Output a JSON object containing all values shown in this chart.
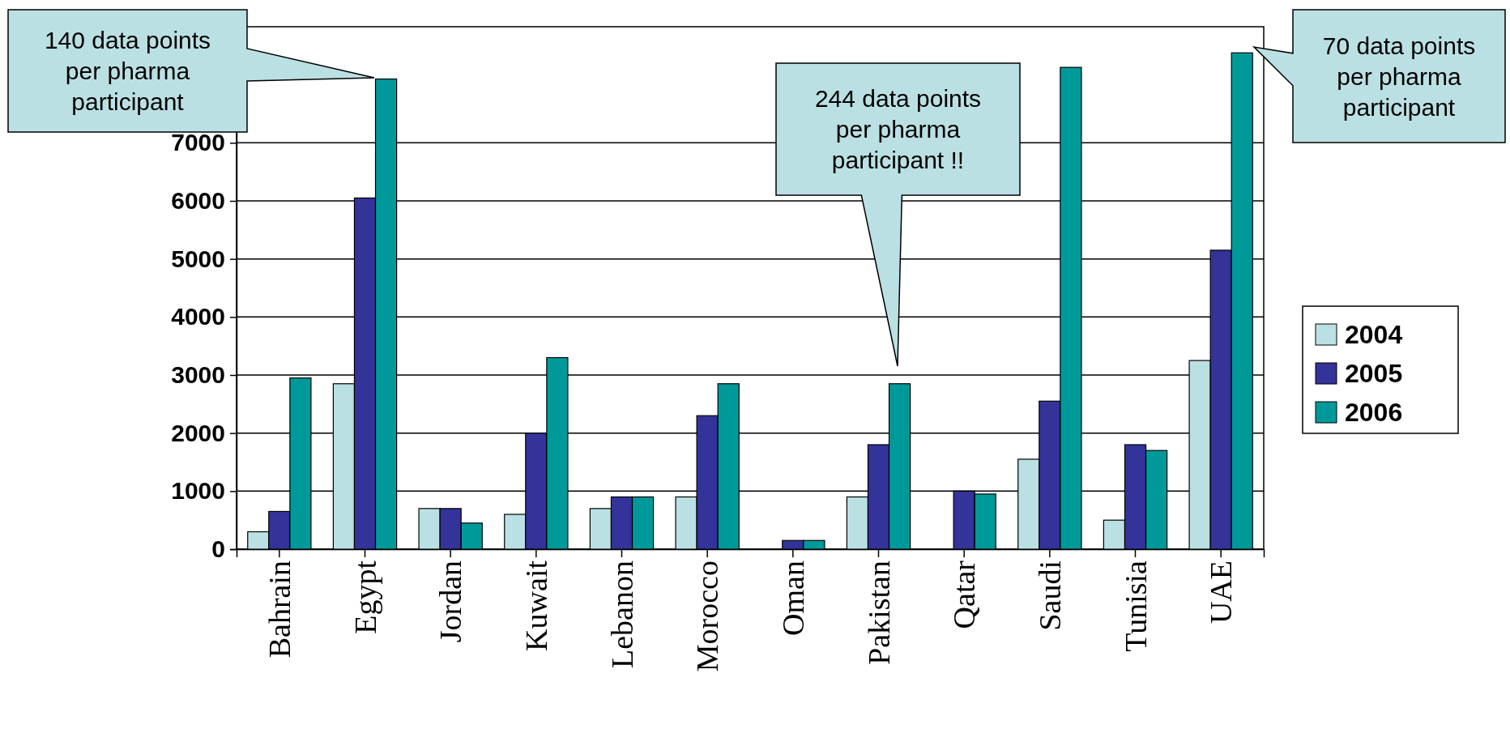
{
  "chart_data": {
    "type": "bar",
    "categories": [
      "Bahrain",
      "Egypt",
      "Jordan",
      "Kuwait",
      "Lebanon",
      "Morocco",
      "Oman",
      "Pakistan",
      "Qatar",
      "Saudi",
      "Tunisia",
      "UAE"
    ],
    "series": [
      {
        "name": "2004",
        "color": "#bbe0e3",
        "values": [
          300,
          2850,
          700,
          600,
          700,
          900,
          null,
          900,
          null,
          1550,
          500,
          3250
        ]
      },
      {
        "name": "2005",
        "color": "#333399",
        "values": [
          650,
          6050,
          700,
          2000,
          900,
          2300,
          150,
          1800,
          1000,
          2550,
          1800,
          5150
        ]
      },
      {
        "name": "2006",
        "color": "#009999",
        "values": [
          2950,
          8100,
          450,
          3300,
          900,
          2850,
          150,
          2850,
          950,
          8300,
          1700,
          8550
        ]
      }
    ],
    "ylim": [
      0,
      9000
    ],
    "yticks": [
      0,
      1000,
      2000,
      3000,
      4000,
      5000,
      6000,
      7000
    ],
    "grid": "y",
    "legend": "right",
    "annotations": [
      "140 data points per pharma participant",
      "244 data points per pharma participant !!",
      "70 data points per pharma participant"
    ]
  }
}
